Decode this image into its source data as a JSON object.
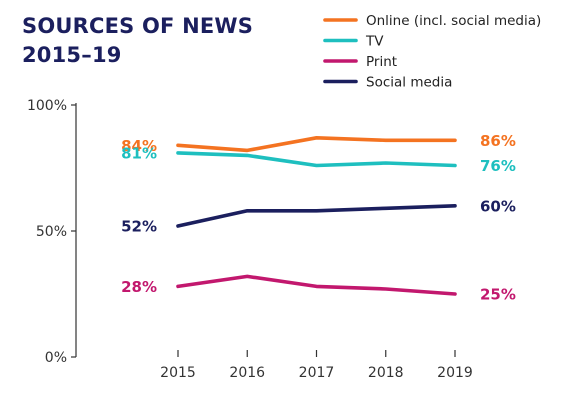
{
  "chart_data": {
    "type": "line",
    "title": [
      "SOURCES OF NEWS",
      "2015–19"
    ],
    "x": [
      "2015",
      "2016",
      "2017",
      "2018",
      "2019"
    ],
    "ylim": [
      0,
      100
    ],
    "yticks": [
      0,
      50,
      100
    ],
    "ytick_labels": [
      "0%",
      "50%",
      "100%"
    ],
    "grid": false,
    "legend_position": "top-right",
    "series": [
      {
        "name": "Online (incl. social media)",
        "color": "#f47321",
        "values": [
          84,
          82,
          87,
          86,
          86
        ],
        "start_label": "84%",
        "end_label": "86%"
      },
      {
        "name": "TV",
        "color": "#1ebfbf",
        "values": [
          81,
          80,
          76,
          77,
          76
        ],
        "start_label": "81%",
        "end_label": "76%"
      },
      {
        "name": "Print",
        "color": "#c2186e",
        "values": [
          28,
          32,
          28,
          27,
          25
        ],
        "start_label": "28%",
        "end_label": "25%"
      },
      {
        "name": "Social media",
        "color": "#1b1f5e",
        "values": [
          52,
          58,
          58,
          59,
          60
        ],
        "start_label": "52%",
        "end_label": "60%"
      }
    ],
    "axis_color": "#333333",
    "label_dark_color": "#1b1f5e"
  }
}
